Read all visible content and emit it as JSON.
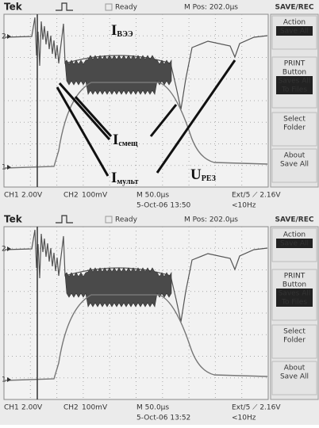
{
  "screens": [
    {
      "header": {
        "brand": "Tek",
        "status": "Ready",
        "position": "M Pos: 202.0µs"
      },
      "menu": {
        "title": "SAVE/REC",
        "items": [
          {
            "label": [
              "Action"
            ],
            "value": [
              "Save All"
            ]
          },
          {
            "label": [
              "PRINT",
              "Button"
            ],
            "value": [
              "Saves All",
              "To Files"
            ]
          },
          {
            "label": [
              "Select",
              "Folder"
            ]
          },
          {
            "label": [
              "About",
              "Save All"
            ]
          }
        ]
      },
      "markers": [
        "2",
        "1"
      ],
      "footer": {
        "ch1": "CH1",
        "ch1_scale": "2.00V",
        "ch2": "CH2",
        "ch2_scale": "100mV",
        "timebase": "M 50.0µs",
        "date": "5-Oct-06 13:50",
        "trigger": "Ext/5 ⟋ 2.16V",
        "frequency": "<10Hz"
      },
      "annotations": [
        {
          "main": "I",
          "sub": "ВЭЭ"
        },
        {
          "main": "I",
          "sub": "смещ"
        },
        {
          "main": "I",
          "sub": "мульт"
        },
        {
          "main": "U",
          "sub": "РЕЗ"
        }
      ]
    },
    {
      "header": {
        "brand": "Tek",
        "status": "Ready",
        "position": "M Pos: 202.0µs"
      },
      "menu": {
        "title": "SAVE/REC",
        "items": [
          {
            "label": [
              "Action"
            ],
            "value": [
              "Save All"
            ]
          },
          {
            "label": [
              "PRINT",
              "Button"
            ],
            "value": [
              "Saves All",
              "To Files"
            ]
          },
          {
            "label": [
              "Select",
              "Folder"
            ]
          },
          {
            "label": [
              "About",
              "Save All"
            ]
          }
        ]
      },
      "markers": [
        "2",
        "1"
      ],
      "footer": {
        "ch1": "CH1",
        "ch1_scale": "2.00V",
        "ch2": "CH2",
        "ch2_scale": "100mV",
        "timebase": "M 50.0µs",
        "date": "5-Oct-06 13:52",
        "trigger": "Ext/5 ⟋ 2.16V",
        "frequency": "<10Hz"
      }
    }
  ]
}
